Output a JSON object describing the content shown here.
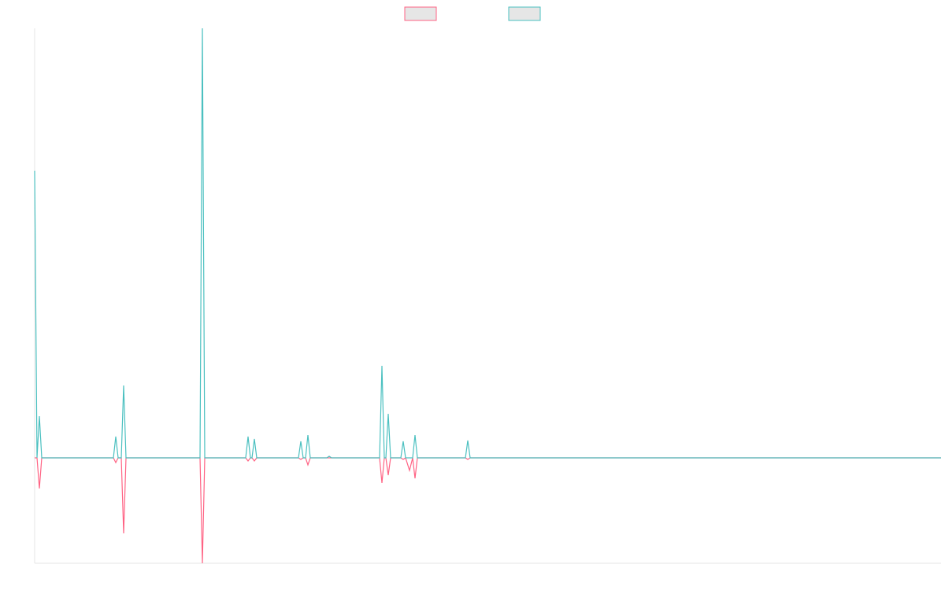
{
  "chart_data": {
    "type": "line",
    "x": [
      0,
      3,
      6,
      9,
      100,
      103,
      106,
      110,
      113,
      116,
      210,
      213,
      216,
      268,
      271,
      274,
      276,
      279,
      282,
      335,
      338,
      341,
      344,
      347,
      350,
      371,
      374,
      377,
      438,
      441,
      444,
      446,
      449,
      452,
      465,
      468,
      471,
      476,
      480,
      483,
      486,
      547,
      550,
      553,
      1151
    ],
    "series": [
      {
        "color": "#ff6384",
        "values": [
          0,
          0,
          -39,
          0,
          0,
          -6,
          0,
          0,
          -96,
          0,
          0,
          -134,
          0,
          0,
          -4,
          0,
          0,
          -4,
          0,
          0,
          -2,
          0,
          0,
          -9,
          0,
          0,
          0,
          0,
          0,
          -32,
          0,
          0,
          -22,
          0,
          0,
          -2,
          0,
          -16,
          0,
          -26,
          0,
          0,
          -2,
          0,
          0
        ]
      },
      {
        "color": "#4bc0c0",
        "values": [
          365,
          0,
          53,
          0,
          0,
          27,
          0,
          0,
          92,
          0,
          0,
          546,
          0,
          0,
          27,
          0,
          0,
          24,
          0,
          0,
          21,
          0,
          0,
          29,
          0,
          0,
          2,
          0,
          0,
          117,
          0,
          0,
          56,
          0,
          0,
          21,
          0,
          0,
          0,
          29,
          0,
          0,
          22,
          0,
          0
        ]
      }
    ],
    "xlim": [
      0,
      1151
    ],
    "ylim": [
      -134,
      546
    ],
    "legend": "top"
  }
}
